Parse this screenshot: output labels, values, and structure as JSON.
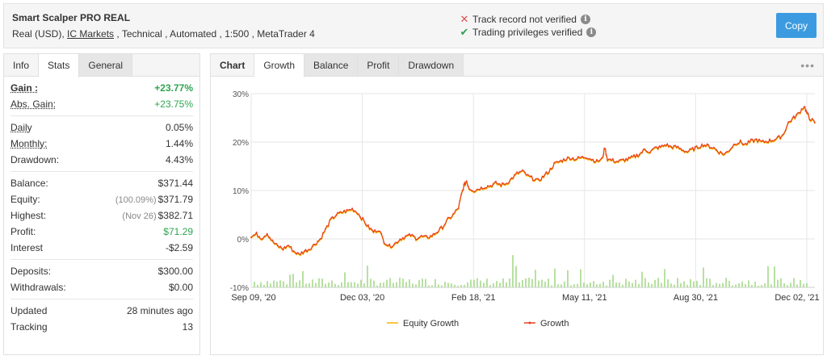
{
  "header": {
    "title": "Smart Scalper PRO REAL",
    "meta_prefix": "Real (USD), ",
    "broker": "IC Markets",
    "meta_suffix": " , Technical , Automated , 1:500 , MetaTrader 4",
    "track_record": "Track record not verified",
    "trading_privileges": "Trading privileges verified",
    "copy_label": "Copy"
  },
  "left_tabs": [
    "Info",
    "Stats",
    "General"
  ],
  "stats": {
    "gain": {
      "label": "Gain :",
      "value": "+23.77%"
    },
    "abs_gain": {
      "label": "Abs. Gain:",
      "value": "+23.75%"
    },
    "daily": {
      "label": "Daily",
      "value": "0.05%"
    },
    "monthly": {
      "label": "Monthly:",
      "value": "1.44%"
    },
    "drawdown": {
      "label": "Drawdown:",
      "value": "4.43%"
    },
    "balance": {
      "label": "Balance:",
      "value": "$371.44"
    },
    "equity": {
      "label": "Equity:",
      "sub": "(100.09%)",
      "value": "$371.79"
    },
    "highest": {
      "label": "Highest:",
      "sub": "(Nov 26)",
      "value": "$382.71"
    },
    "profit": {
      "label": "Profit:",
      "value": "$71.29"
    },
    "interest": {
      "label": "Interest",
      "value": "-$2.59"
    },
    "deposits": {
      "label": "Deposits:",
      "value": "$300.00"
    },
    "withdrawals": {
      "label": "Withdrawals:",
      "value": "$0.00"
    },
    "updated": {
      "label": "Updated",
      "value": "28 minutes ago"
    },
    "tracking": {
      "label": "Tracking",
      "value": "13"
    }
  },
  "right_tabs": {
    "label": "Chart",
    "tabs": [
      "Growth",
      "Balance",
      "Profit",
      "Drawdown"
    ]
  },
  "colors": {
    "growth": "#e8401c",
    "equity": "#f5b400",
    "bars": "#b7e1a1",
    "accent": "#3c9be0"
  },
  "chart_data": {
    "type": "line",
    "ylim": [
      -10,
      30
    ],
    "yticks": [
      "30%",
      "20%",
      "10%",
      "0%",
      "-10%"
    ],
    "xticks": [
      "Sep 09, '20",
      "Dec 03, '20",
      "Feb 18, '21",
      "May 11, '21",
      "Aug 30, '21",
      "Dec 02, '21"
    ],
    "series": [
      {
        "name": "Equity Growth"
      },
      {
        "name": "Growth"
      }
    ],
    "growth_points": [
      [
        0,
        0.5
      ],
      [
        4,
        1.0
      ],
      [
        8,
        0.2
      ],
      [
        12,
        1.2
      ],
      [
        16,
        -0.5
      ],
      [
        20,
        -1.5
      ],
      [
        24,
        -2.0
      ],
      [
        28,
        -1.3
      ],
      [
        32,
        -2.5
      ],
      [
        36,
        -3.2
      ],
      [
        40,
        -2.5
      ],
      [
        44,
        -2.0
      ],
      [
        48,
        -1.0
      ],
      [
        52,
        0.0
      ],
      [
        56,
        2.0
      ],
      [
        60,
        4.0
      ],
      [
        64,
        5.0
      ],
      [
        68,
        5.5
      ],
      [
        72,
        5.8
      ],
      [
        76,
        6.2
      ],
      [
        80,
        5.5
      ],
      [
        84,
        4.0
      ],
      [
        88,
        2.5
      ],
      [
        92,
        1.5
      ],
      [
        96,
        2.0
      ],
      [
        100,
        -0.5
      ],
      [
        104,
        -1.5
      ],
      [
        108,
        -1.0
      ],
      [
        112,
        0.0
      ],
      [
        116,
        0.5
      ],
      [
        120,
        0.8
      ],
      [
        124,
        0.2
      ],
      [
        128,
        0.5
      ],
      [
        132,
        0.3
      ],
      [
        136,
        0.7
      ],
      [
        140,
        1.5
      ],
      [
        144,
        2.5
      ],
      [
        148,
        4.0
      ],
      [
        152,
        5.0
      ],
      [
        156,
        6.5
      ],
      [
        158,
        9.0
      ],
      [
        160,
        11.0
      ],
      [
        162,
        12.0
      ],
      [
        164,
        10.5
      ],
      [
        168,
        10.0
      ],
      [
        172,
        10.5
      ],
      [
        176,
        10.8
      ],
      [
        180,
        11.0
      ],
      [
        184,
        11.5
      ],
      [
        188,
        11.2
      ],
      [
        192,
        11.5
      ],
      [
        196,
        12.5
      ],
      [
        200,
        13.5
      ],
      [
        204,
        14.0
      ],
      [
        208,
        13.0
      ],
      [
        212,
        12.5
      ],
      [
        216,
        12.0
      ],
      [
        220,
        13.0
      ],
      [
        224,
        14.0
      ],
      [
        228,
        15.5
      ],
      [
        232,
        16.0
      ],
      [
        236,
        16.5
      ],
      [
        240,
        16.8
      ],
      [
        244,
        16.5
      ],
      [
        248,
        16.8
      ],
      [
        252,
        17.0
      ],
      [
        256,
        16.5
      ],
      [
        260,
        16.0
      ],
      [
        264,
        16.5
      ],
      [
        266,
        19.0
      ],
      [
        268,
        16.5
      ],
      [
        272,
        16.2
      ],
      [
        276,
        16.0
      ],
      [
        280,
        16.3
      ],
      [
        284,
        16.5
      ],
      [
        288,
        17.0
      ],
      [
        292,
        17.5
      ],
      [
        296,
        18.5
      ],
      [
        300,
        18.0
      ],
      [
        304,
        18.8
      ],
      [
        308,
        19.0
      ],
      [
        312,
        19.5
      ],
      [
        316,
        19.0
      ],
      [
        320,
        19.0
      ],
      [
        324,
        18.5
      ],
      [
        328,
        18.0
      ],
      [
        332,
        18.5
      ],
      [
        336,
        19.0
      ],
      [
        340,
        19.5
      ],
      [
        344,
        19.2
      ],
      [
        348,
        18.8
      ],
      [
        352,
        18.0
      ],
      [
        356,
        17.5
      ],
      [
        360,
        18.5
      ],
      [
        364,
        19.8
      ],
      [
        368,
        20.0
      ],
      [
        372,
        19.5
      ],
      [
        376,
        20.2
      ],
      [
        380,
        20.5
      ],
      [
        384,
        20.0
      ],
      [
        388,
        20.2
      ],
      [
        392,
        20.4
      ],
      [
        396,
        20.8
      ],
      [
        400,
        21.5
      ],
      [
        404,
        24.0
      ],
      [
        408,
        25.0
      ],
      [
        412,
        26.0
      ],
      [
        416,
        27.5
      ],
      [
        418,
        26.0
      ],
      [
        420,
        25.0
      ],
      [
        424,
        24.0
      ]
    ]
  },
  "legend": {
    "equity": "Equity Growth",
    "growth": "Growth"
  }
}
